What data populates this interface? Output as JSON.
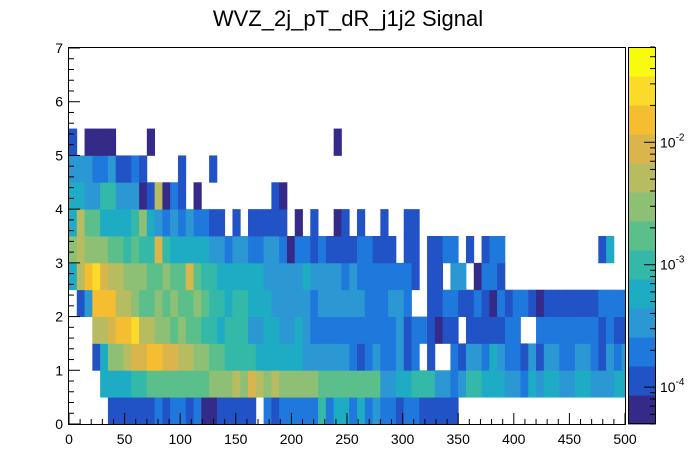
{
  "chart_data": {
    "type": "heatmap",
    "title": "WVZ_2j_pT_dR_j1j2 Signal",
    "xlabel": "",
    "ylabel": "",
    "xlim": [
      0,
      500
    ],
    "ylim": [
      0,
      7
    ],
    "x_ticks": [
      "0",
      "50",
      "100",
      "150",
      "200",
      "250",
      "300",
      "350",
      "400",
      "450",
      "500"
    ],
    "y_ticks": [
      "0",
      "1",
      "2",
      "3",
      "4",
      "5",
      "6",
      "7"
    ],
    "colorbar": {
      "scale": "log",
      "range": [
        5e-05,
        0.06
      ],
      "tick_mantissa": "10",
      "tick_exponents": [
        "-4",
        "-3",
        "-2"
      ],
      "palette": [
        "#352a87",
        "#2152c6",
        "#1f79dc",
        "#2b98d3",
        "#1eabc4",
        "#34b9a8",
        "#5bbf8b",
        "#8dbf74",
        "#b8bc61",
        "#dab54c",
        "#f5bd30",
        "#fadb29",
        "#f9fb0e"
      ]
    },
    "bin_width_x": 10,
    "bin_width_y": 0.5,
    "rows": [
      {
        "y_low": 0.0,
        "levels": [
          0,
          0,
          0,
          0,
          0,
          2,
          2,
          2,
          2,
          2,
          2,
          3,
          2,
          3,
          3,
          2,
          3,
          1,
          1,
          2,
          2,
          2,
          2,
          2,
          0,
          3,
          2,
          3,
          3,
          3,
          3,
          3,
          6,
          3,
          5,
          5,
          3,
          5,
          3,
          4,
          3,
          3,
          2,
          3,
          3,
          2,
          2,
          2,
          2,
          2
        ]
      },
      {
        "y_low": 0.5,
        "levels": [
          0,
          0,
          0,
          0,
          5,
          5,
          5,
          5,
          6,
          6,
          7,
          7,
          7,
          7,
          7,
          7,
          7,
          7,
          8,
          8,
          8,
          9,
          8,
          10,
          9,
          8,
          9,
          8,
          8,
          8,
          8,
          8,
          7,
          7,
          7,
          7,
          7,
          7,
          7,
          7,
          4,
          4,
          5,
          5,
          6,
          6,
          6,
          4,
          4,
          3,
          4,
          6,
          6,
          5,
          5,
          5,
          4,
          4,
          3,
          5,
          4,
          5,
          5,
          4,
          4,
          5,
          5,
          4,
          4,
          4,
          5,
          5,
          4,
          4,
          5,
          5,
          6,
          6,
          5
        ]
      },
      {
        "y_low": 1.0,
        "levels": [
          0,
          0,
          0,
          2,
          5,
          8,
          8,
          9,
          10,
          10,
          11,
          11,
          10,
          10,
          9,
          9,
          8,
          8,
          7,
          7,
          6,
          6,
          6,
          6,
          5,
          5,
          5,
          5,
          5,
          5,
          4,
          4,
          4,
          4,
          4,
          4,
          3,
          2,
          3,
          4,
          3,
          3,
          4,
          2,
          3,
          0,
          2,
          0,
          0,
          3,
          2,
          4,
          4,
          3,
          5,
          4,
          3,
          3,
          2,
          4,
          2,
          4,
          4,
          3,
          3,
          4,
          4,
          3,
          2,
          4,
          3,
          4,
          4,
          3,
          4,
          3,
          5,
          5,
          4
        ]
      },
      {
        "y_low": 1.5,
        "levels": [
          0,
          0,
          0,
          9,
          9,
          10,
          11,
          11,
          12,
          9,
          9,
          8,
          8,
          7,
          8,
          7,
          7,
          6,
          6,
          5,
          6,
          6,
          6,
          4,
          4,
          5,
          5,
          4,
          4,
          5,
          4,
          3,
          3,
          3,
          3,
          3,
          3,
          3,
          3,
          3,
          3,
          3,
          4,
          2,
          3,
          3,
          2,
          1,
          2,
          2,
          0,
          2,
          2,
          2,
          2,
          2,
          3,
          3,
          0,
          0,
          3,
          3,
          3,
          3,
          3,
          3,
          3,
          3,
          2,
          3,
          2,
          2,
          3,
          3
        ]
      },
      {
        "y_low": 2.0,
        "levels": [
          0,
          2,
          4,
          11,
          11,
          11,
          9,
          9,
          8,
          7,
          7,
          8,
          7,
          8,
          7,
          7,
          8,
          7,
          6,
          6,
          5,
          6,
          6,
          5,
          5,
          5,
          4,
          4,
          4,
          4,
          4,
          3,
          4,
          4,
          4,
          4,
          4,
          4,
          3,
          3,
          3,
          4,
          4,
          3,
          0,
          0,
          2,
          2,
          3,
          3,
          2,
          2,
          3,
          2,
          1,
          3,
          2,
          3,
          3,
          2,
          1,
          2,
          2,
          2,
          2,
          2,
          2,
          2,
          3,
          3,
          3,
          3,
          2,
          3,
          2,
          2,
          3,
          3,
          2,
          3,
          2
        ]
      },
      {
        "y_low": 2.5,
        "levels": [
          5,
          9,
          11,
          12,
          10,
          9,
          9,
          8,
          8,
          8,
          7,
          7,
          8,
          7,
          7,
          10,
          7,
          6,
          6,
          5,
          5,
          5,
          5,
          5,
          5,
          4,
          4,
          4,
          4,
          4,
          5,
          4,
          4,
          4,
          4,
          3,
          4,
          3,
          3,
          3,
          3,
          3,
          3,
          3,
          2,
          0,
          2,
          2,
          0,
          4,
          4,
          0,
          1,
          3,
          3,
          2,
          0,
          0,
          0,
          0,
          0,
          0,
          0,
          0,
          0,
          0,
          0,
          0,
          0,
          0,
          0,
          0,
          0,
          1
        ]
      },
      {
        "y_low": 3.0,
        "levels": [
          8,
          9,
          8,
          8,
          8,
          7,
          7,
          6,
          7,
          6,
          6,
          10,
          6,
          5,
          5,
          5,
          5,
          5,
          4,
          4,
          3,
          4,
          4,
          3,
          3,
          4,
          4,
          3,
          1,
          3,
          3,
          2,
          3,
          2,
          2,
          2,
          2,
          3,
          3,
          2,
          2,
          2,
          0,
          2,
          2,
          0,
          2,
          2,
          3,
          3,
          0,
          2,
          0,
          2,
          3,
          3,
          0,
          0,
          0,
          0,
          0,
          0,
          0,
          0,
          0,
          0,
          0,
          0,
          2,
          5
        ]
      },
      {
        "y_low": 3.5,
        "levels": [
          5,
          9,
          7,
          7,
          5,
          5,
          5,
          5,
          6,
          8,
          5,
          4,
          3,
          4,
          3,
          4,
          3,
          3,
          2,
          2,
          0,
          2,
          0,
          2,
          2,
          2,
          2,
          2,
          0,
          1,
          0,
          2,
          0,
          0,
          1,
          2,
          0,
          2,
          0,
          0,
          2,
          0,
          0,
          2,
          2
        ]
      },
      {
        "y_low": 4.0,
        "levels": [
          5,
          5,
          4,
          4,
          6,
          6,
          4,
          4,
          4,
          1,
          2,
          9,
          1,
          3,
          2,
          0,
          1,
          0,
          0,
          0,
          0,
          0,
          0,
          0,
          0,
          0,
          2,
          1,
          0,
          0,
          0,
          0
        ]
      },
      {
        "y_low": 4.5,
        "levels": [
          4,
          4,
          4,
          3,
          3,
          4,
          2,
          2,
          3,
          2,
          0,
          0,
          0,
          0,
          2,
          0,
          0,
          0,
          2
        ]
      },
      {
        "y_low": 5.0,
        "levels": [
          2,
          0,
          1,
          1,
          1,
          1,
          0,
          0,
          0,
          0,
          1,
          0,
          0,
          0,
          0,
          0,
          0,
          0,
          0,
          0,
          0,
          0,
          0,
          0,
          0,
          0,
          0,
          0,
          0,
          0,
          0,
          0,
          0,
          0,
          1
        ]
      }
    ]
  }
}
